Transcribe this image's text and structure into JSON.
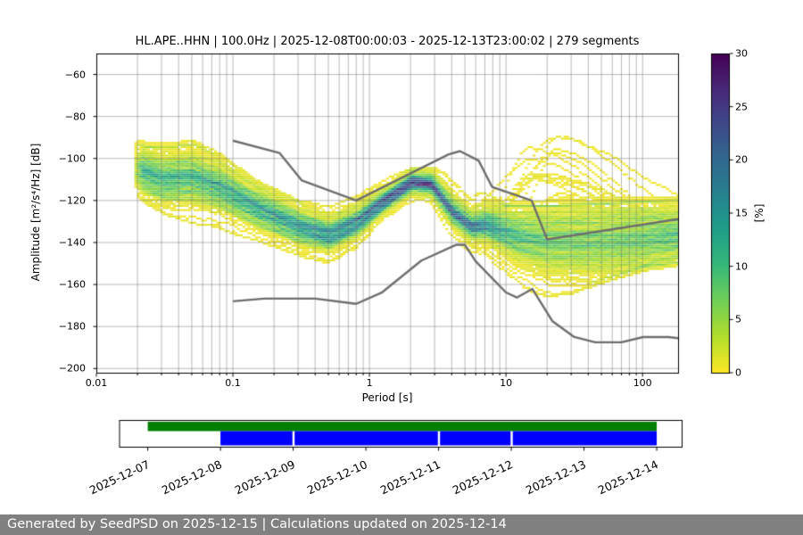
{
  "chart_data": {
    "type": "heatmap",
    "title": "HL.APE..HHN | 100.0Hz | 2025-12-08T00:00:03 - 2025-12-13T23:00:02 | 279 segments",
    "xlabel": "Period [s]",
    "ylabel": "Amplitude [m²/s⁴/Hz] [dB]",
    "xscale": "log",
    "xlim": [
      0.01,
      182
    ],
    "ylim": [
      -202,
      -50
    ],
    "grid": true,
    "n_segments": 279,
    "xticks": [
      {
        "value": 0.01,
        "label": "0.01"
      },
      {
        "value": 0.1,
        "label": "0.1"
      },
      {
        "value": 1,
        "label": "1"
      },
      {
        "value": 10,
        "label": "10"
      },
      {
        "value": 100,
        "label": "100"
      }
    ],
    "yticks": [
      {
        "value": -60,
        "label": "−60"
      },
      {
        "value": -80,
        "label": "−80"
      },
      {
        "value": -100,
        "label": "−100"
      },
      {
        "value": -120,
        "label": "−120"
      },
      {
        "value": -140,
        "label": "−140"
      },
      {
        "value": -160,
        "label": "−160"
      },
      {
        "value": -180,
        "label": "−180"
      },
      {
        "value": -200,
        "label": "−200"
      }
    ],
    "colorbar": {
      "label": "[%]",
      "min": 0,
      "max": 30,
      "colormap": "viridis reversed (0%=yellow, 30%=dark purple)",
      "ticks": [
        {
          "value": 0,
          "label": "0"
        },
        {
          "value": 5,
          "label": "5"
        },
        {
          "value": 10,
          "label": "10"
        },
        {
          "value": 15,
          "label": "15"
        },
        {
          "value": 20,
          "label": "20"
        },
        {
          "value": 25,
          "label": "25"
        },
        {
          "value": 30,
          "label": "30"
        }
      ]
    },
    "noise_models": {
      "color": "#6e6e6e",
      "high_noise_model": [
        [
          0.1,
          -91.5
        ],
        [
          0.22,
          -97.4
        ],
        [
          0.32,
          -110.5
        ],
        [
          0.8,
          -120.0
        ],
        [
          3.8,
          -98.0
        ],
        [
          4.6,
          -96.5
        ],
        [
          6.3,
          -101.0
        ],
        [
          7.9,
          -113.5
        ],
        [
          15.4,
          -120.0
        ],
        [
          20.0,
          -138.5
        ],
        [
          354.8,
          -126.0
        ]
      ],
      "low_noise_model": [
        [
          0.1,
          -168.0
        ],
        [
          0.17,
          -166.7
        ],
        [
          0.4,
          -166.7
        ],
        [
          0.8,
          -169.2
        ],
        [
          1.24,
          -163.7
        ],
        [
          2.4,
          -148.6
        ],
        [
          4.3,
          -141.1
        ],
        [
          5.0,
          -141.1
        ],
        [
          6.0,
          -149.0
        ],
        [
          10.0,
          -163.8
        ],
        [
          12.0,
          -166.2
        ],
        [
          15.6,
          -162.1
        ],
        [
          21.9,
          -177.5
        ],
        [
          31.6,
          -185.0
        ],
        [
          45.0,
          -187.5
        ],
        [
          70.0,
          -187.5
        ],
        [
          101.0,
          -185.0
        ],
        [
          154.0,
          -185.0
        ],
        [
          328.0,
          -187.5
        ]
      ]
    },
    "density_model": {
      "period_range": [
        0.019,
        182
      ],
      "mode_db": [
        [
          0.019,
          -105
        ],
        [
          0.03,
          -110
        ],
        [
          0.05,
          -109
        ],
        [
          0.08,
          -114
        ],
        [
          0.15,
          -124
        ],
        [
          0.3,
          -133
        ],
        [
          0.5,
          -137
        ],
        [
          0.8,
          -131
        ],
        [
          1.2,
          -122
        ],
        [
          2,
          -112
        ],
        [
          2.8,
          -113
        ],
        [
          4,
          -126
        ],
        [
          5.5,
          -133
        ],
        [
          7,
          -132
        ],
        [
          9,
          -134.5
        ],
        [
          12,
          -137
        ],
        [
          20,
          -139
        ],
        [
          50,
          -139
        ],
        [
          100,
          -138
        ],
        [
          180,
          -136.5
        ]
      ],
      "upper_db": [
        [
          0.019,
          -95
        ],
        [
          0.03,
          -96
        ],
        [
          0.05,
          -94
        ],
        [
          0.08,
          -100
        ],
        [
          0.15,
          -113
        ],
        [
          0.3,
          -122
        ],
        [
          0.5,
          -124
        ],
        [
          0.8,
          -119
        ],
        [
          1.2,
          -111
        ],
        [
          2,
          -106
        ],
        [
          3,
          -106
        ],
        [
          4,
          -110
        ],
        [
          6,
          -116
        ],
        [
          10,
          -124
        ],
        [
          20,
          -124
        ],
        [
          50,
          -123
        ],
        [
          100,
          -122
        ],
        [
          180,
          -121
        ]
      ],
      "lower_db": [
        [
          0.019,
          -118
        ],
        [
          0.03,
          -126
        ],
        [
          0.05,
          -132
        ],
        [
          0.08,
          -135
        ],
        [
          0.15,
          -140
        ],
        [
          0.3,
          -147
        ],
        [
          0.5,
          -151
        ],
        [
          0.8,
          -149
        ],
        [
          1.2,
          -141
        ],
        [
          2,
          -127
        ],
        [
          3,
          -137
        ],
        [
          4,
          -150
        ],
        [
          6,
          -157
        ],
        [
          10,
          -162
        ],
        [
          20,
          -166
        ],
        [
          30,
          -164
        ],
        [
          50,
          -158
        ],
        [
          100,
          -152
        ],
        [
          180,
          -150
        ]
      ],
      "sigma_db": [
        [
          0.019,
          4.5
        ],
        [
          0.05,
          5
        ],
        [
          0.1,
          4
        ],
        [
          0.3,
          3.3
        ],
        [
          0.8,
          2.6
        ],
        [
          1.3,
          1.7
        ],
        [
          2.6,
          1.7
        ],
        [
          3.5,
          2.5
        ],
        [
          5.5,
          2.4
        ],
        [
          8,
          3.5
        ],
        [
          12,
          5
        ],
        [
          20,
          6.5
        ],
        [
          50,
          7
        ],
        [
          100,
          6.5
        ],
        [
          180,
          5.5
        ]
      ],
      "outliers": {
        "fraction_wide": 0.16,
        "sigma_multiplier_wide": 2.0,
        "fraction_extreme": 0.06,
        "sigma_multiplier_extreme": 3.0
      },
      "storm_arcs": {
        "count": 13,
        "amp_db": [
          20,
          50
        ],
        "center_period_s": [
          14,
          24
        ],
        "sigma_left_log10": [
          0.13,
          0.25
        ],
        "sigma_right_log10": [
          0.4,
          0.65
        ]
      },
      "n_traces": 279,
      "db_bin": 1,
      "period_bins_per_octave": 16
    }
  },
  "timeline": {
    "origin_date": "2025-12-07",
    "axis_days": [
      -0.394,
      7.343
    ],
    "green_bar": {
      "name": "data availability",
      "color": "#008000",
      "start_day": 0.0,
      "end_day": 7.0
    },
    "blue_bar": {
      "name": "psd coverage",
      "color": "#0000ff",
      "segments": [
        [
          1.0,
          1.99
        ],
        [
          2.02,
          3.99
        ],
        [
          4.02,
          4.99
        ],
        [
          5.02,
          7.0
        ]
      ]
    },
    "tick_labels": [
      "2025-12-07",
      "2025-12-08",
      "2025-12-09",
      "2025-12-10",
      "2025-12-11",
      "2025-12-12",
      "2025-12-13",
      "2025-12-14"
    ]
  },
  "footer": {
    "text": "Generated by SeedPSD on 2025-12-15 | Calculations updated on 2025-12-14",
    "background": "#808080"
  }
}
